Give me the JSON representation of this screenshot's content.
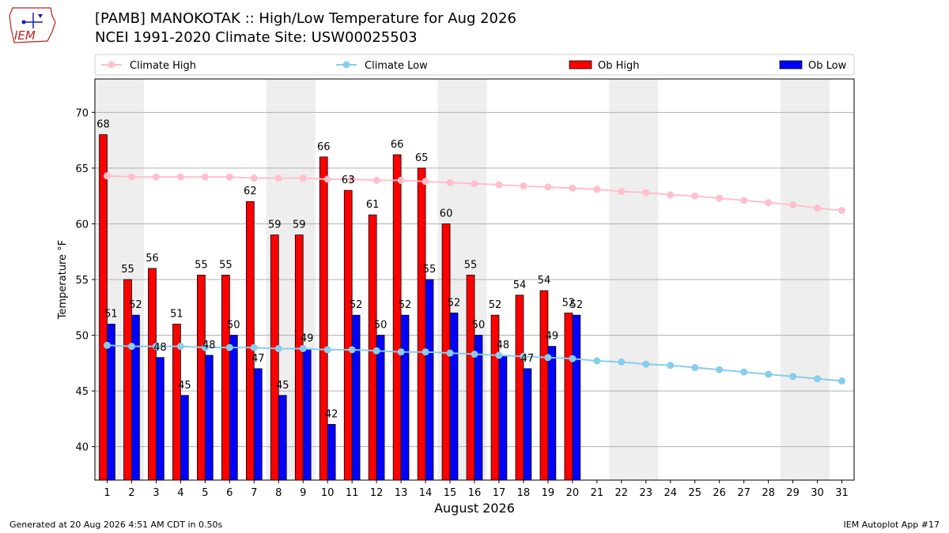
{
  "page": {
    "title_line1": "[PAMB] MANOKOTAK :: High/Low Temperature for Aug 2026",
    "title_line2": "NCEI 1991-2020 Climate Site: USW00025503",
    "footer_left": "Generated at 20 Aug 2026 4:51 AM CDT in 0.50s",
    "footer_right": "IEM Autoplot App #17",
    "logo_text": "IEM"
  },
  "chart_data": {
    "type": "bar",
    "title": "[PAMB] MANOKOTAK :: High/Low Temperature for Aug 2026",
    "subtitle": "NCEI 1991-2020 Climate Site: USW00025503",
    "xlabel": "August 2026",
    "ylabel": "Temperature °F",
    "ylim": [
      37,
      73
    ],
    "yticks": [
      40,
      45,
      50,
      55,
      60,
      65,
      70
    ],
    "x": [
      1,
      2,
      3,
      4,
      5,
      6,
      7,
      8,
      9,
      10,
      11,
      12,
      13,
      14,
      15,
      16,
      17,
      18,
      19,
      20,
      21,
      22,
      23,
      24,
      25,
      26,
      27,
      28,
      29,
      30,
      31
    ],
    "weekend_bands": [
      [
        1,
        2
      ],
      [
        8,
        9
      ],
      [
        15,
        16
      ],
      [
        22,
        23
      ],
      [
        29,
        30
      ]
    ],
    "grid": "horizontal",
    "legend_placement": "top",
    "legend": [
      {
        "label": "Climate High",
        "kind": "line",
        "color": "#ffc0cb"
      },
      {
        "label": "Climate Low",
        "kind": "line",
        "color": "#87ceeb"
      },
      {
        "label": "Ob High",
        "kind": "bar",
        "color": "#ff0000"
      },
      {
        "label": "Ob Low",
        "kind": "bar",
        "color": "#0000ff"
      }
    ],
    "series": [
      {
        "name": "Ob High",
        "type": "bar",
        "color": "#ff0000",
        "values": [
          68,
          55,
          56,
          51,
          55.4,
          55.4,
          62,
          59,
          59,
          66,
          63,
          60.8,
          66.2,
          65,
          60,
          55.4,
          51.8,
          53.6,
          54,
          52,
          null,
          null,
          null,
          null,
          null,
          null,
          null,
          null,
          null,
          null,
          null
        ],
        "labels": [
          "68",
          "55",
          "56",
          "51",
          "55",
          "55",
          "62",
          "59",
          "59",
          "66",
          "63",
          "61",
          "66",
          "65",
          "60",
          "55",
          "52",
          "54",
          "54",
          "52",
          null,
          null,
          null,
          null,
          null,
          null,
          null,
          null,
          null,
          null,
          null
        ]
      },
      {
        "name": "Ob Low",
        "type": "bar",
        "color": "#0000ff",
        "values": [
          51,
          51.8,
          48,
          44.6,
          48.2,
          50,
          47,
          44.6,
          48.8,
          42,
          51.8,
          50,
          51.8,
          55,
          52,
          50,
          48.2,
          47,
          49,
          51.8,
          null,
          null,
          null,
          null,
          null,
          null,
          null,
          null,
          null,
          null,
          null
        ],
        "labels": [
          "51",
          "52",
          "48",
          "45",
          "48",
          "50",
          "47",
          "45",
          "49",
          "42",
          "52",
          "50",
          "52",
          "55",
          "52",
          "50",
          "48",
          "47",
          "49",
          "52",
          null,
          null,
          null,
          null,
          null,
          null,
          null,
          null,
          null,
          null,
          null
        ]
      },
      {
        "name": "Climate High",
        "type": "line",
        "color": "#ffc0cb",
        "values": [
          64.3,
          64.2,
          64.2,
          64.2,
          64.2,
          64.2,
          64.1,
          64.1,
          64.1,
          64.0,
          64.0,
          63.9,
          63.9,
          63.8,
          63.7,
          63.6,
          63.5,
          63.4,
          63.3,
          63.2,
          63.1,
          62.9,
          62.8,
          62.6,
          62.5,
          62.3,
          62.1,
          61.9,
          61.7,
          61.4,
          61.2
        ]
      },
      {
        "name": "Climate Low",
        "type": "line",
        "color": "#87ceeb",
        "values": [
          49.1,
          49.0,
          49.0,
          49.0,
          48.9,
          48.9,
          48.9,
          48.8,
          48.8,
          48.7,
          48.7,
          48.6,
          48.5,
          48.5,
          48.4,
          48.3,
          48.2,
          48.1,
          48.0,
          47.9,
          47.7,
          47.6,
          47.4,
          47.3,
          47.1,
          46.9,
          46.7,
          46.5,
          46.3,
          46.1,
          45.9
        ]
      }
    ]
  }
}
